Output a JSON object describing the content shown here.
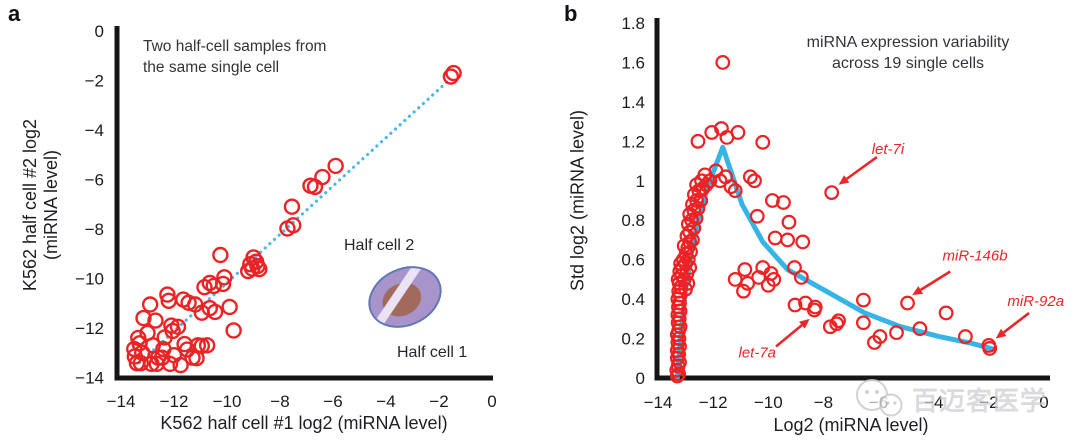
{
  "figure": {
    "panels": {
      "a": {
        "letter": "a",
        "annotation_line1": "Two half-cell samples from",
        "annotation_line2": "the same single cell",
        "x_label": "K562 half cell #1 log2 (miRNA level)",
        "y_label_line1": "K562 half cell #2 log2",
        "y_label_line2": "(miRNA level)",
        "inset_label_top": "Half cell 2",
        "inset_label_bottom": "Half cell 1"
      },
      "b": {
        "letter": "b",
        "title_line1": "miRNA expression variability",
        "title_line2": "across 19 single cells",
        "x_label": "Log2 (miRNA level)",
        "y_label": "Std log2 (miRNA level)"
      }
    },
    "watermark_text": "百迈客医学"
  },
  "colors": {
    "marker_red": "#ed2224",
    "annotation_red": "#e8262b",
    "line_blue": "#35b4e5",
    "dotted_blue": "#4db9e8",
    "axis_black": "#151515",
    "cell_body": "#a893cb",
    "cell_border": "#6277b6",
    "cell_nucleus": "#a26a5c",
    "cell_stripe": "#eae3f3",
    "watermark_gray": "#cdcdd2"
  },
  "chart_data": [
    {
      "id": "a",
      "type": "scatter",
      "title": "Two half-cell samples from the same single cell",
      "xlabel": "K562 half cell #1 log2 (miRNA level)",
      "ylabel": "K562 half cell #2 log2 (miRNA level)",
      "xlim": [
        -14,
        0
      ],
      "ylim": [
        -14,
        0
      ],
      "xticks": [
        -14,
        -12,
        -10,
        -8,
        -6,
        -4,
        -2,
        0
      ],
      "yticks": [
        0,
        -2,
        -4,
        -6,
        -8,
        -10,
        -12,
        -14
      ],
      "grid": false,
      "identity_line": {
        "style": "dotted",
        "from": [
          -13.3,
          -13.4
        ],
        "to": [
          -1.7,
          -2.06
        ]
      },
      "points": [
        [
          -1.45,
          -1.7
        ],
        [
          -1.55,
          -1.84
        ],
        [
          -5.9,
          -5.45
        ],
        [
          -6.4,
          -5.9
        ],
        [
          -6.85,
          -6.25
        ],
        [
          -6.68,
          -6.3
        ],
        [
          -7.55,
          -7.1
        ],
        [
          -7.5,
          -7.85
        ],
        [
          -7.72,
          -7.98
        ],
        [
          -10.25,
          -9.05
        ],
        [
          -9.0,
          -9.15
        ],
        [
          -8.9,
          -9.32
        ],
        [
          -8.85,
          -9.5
        ],
        [
          -9.05,
          -9.6
        ],
        [
          -9.2,
          -9.7
        ],
        [
          -8.78,
          -9.62
        ],
        [
          -9.12,
          -9.42
        ],
        [
          -10.1,
          -9.95
        ],
        [
          -10.85,
          -10.35
        ],
        [
          -10.65,
          -10.18
        ],
        [
          -10.5,
          -10.3
        ],
        [
          -10.15,
          -10.22
        ],
        [
          -11.65,
          -10.85
        ],
        [
          -11.45,
          -10.98
        ],
        [
          -11.2,
          -11.05
        ],
        [
          -10.65,
          -11.2
        ],
        [
          -10.45,
          -11.35
        ],
        [
          -10.95,
          -11.38
        ],
        [
          -9.9,
          -11.15
        ],
        [
          -9.75,
          -12.1
        ],
        [
          -11.85,
          -11.95
        ],
        [
          -12.25,
          -10.65
        ],
        [
          -12.2,
          -10.9
        ],
        [
          -12.9,
          -11.05
        ],
        [
          -13.15,
          -11.6
        ],
        [
          -12.7,
          -11.7
        ],
        [
          -12.1,
          -11.9
        ],
        [
          -12.05,
          -12.12
        ],
        [
          -13.35,
          -12.4
        ],
        [
          -13.3,
          -12.62
        ],
        [
          -12.8,
          -12.7
        ],
        [
          -13.0,
          -12.2
        ],
        [
          -12.6,
          -13.2
        ],
        [
          -12.45,
          -13.2
        ],
        [
          -12.0,
          -13.1
        ],
        [
          -11.6,
          -12.65
        ],
        [
          -11.5,
          -12.87
        ],
        [
          -11.1,
          -12.7
        ],
        [
          -10.95,
          -12.72
        ],
        [
          -10.75,
          -12.7
        ],
        [
          -11.3,
          -13.2
        ],
        [
          -11.15,
          -13.22
        ],
        [
          -13.4,
          -13.42
        ],
        [
          -13.25,
          -13.42
        ],
        [
          -12.85,
          -13.45
        ],
        [
          -12.65,
          -13.45
        ],
        [
          -13.5,
          -12.85
        ],
        [
          -13.48,
          -13.15
        ],
        [
          -12.35,
          -12.38
        ],
        [
          -12.4,
          -12.85
        ],
        [
          -11.75,
          -13.5
        ],
        [
          -12.15,
          -13.45
        ],
        [
          -13.2,
          -13.0
        ]
      ]
    },
    {
      "id": "b",
      "type": "scatter",
      "title": "miRNA expression variability across 19 single cells",
      "xlabel": "Log2 (miRNA level)",
      "ylabel": "Std log2 (miRNA level)",
      "xlim": [
        -14,
        0
      ],
      "ylim": [
        0,
        1.8
      ],
      "xticks": [
        -14,
        -12,
        -10,
        -8,
        -6,
        -4,
        -2,
        0
      ],
      "yticks": [
        0,
        0.2,
        0.4,
        0.6,
        0.8,
        1,
        1.2,
        1.4,
        1.6,
        1.8
      ],
      "grid": false,
      "trend_line": {
        "style": "solid",
        "points": [
          [
            -13.3,
            0
          ],
          [
            -13.15,
            0.25
          ],
          [
            -13.0,
            0.45
          ],
          [
            -12.8,
            0.63
          ],
          [
            -12.55,
            0.8
          ],
          [
            -12.2,
            0.97
          ],
          [
            -11.65,
            1.17
          ],
          [
            -10.95,
            0.88
          ],
          [
            -10.2,
            0.69
          ],
          [
            -9.3,
            0.55
          ],
          [
            -7.9,
            0.44
          ],
          [
            -6.5,
            0.33
          ],
          [
            -5.2,
            0.26
          ],
          [
            -3.8,
            0.21
          ],
          [
            -2.6,
            0.175
          ],
          [
            -1.8,
            0.145
          ]
        ]
      },
      "points": [
        [
          -13.3,
          0.01
        ],
        [
          -13.25,
          0.02
        ],
        [
          -13.32,
          0.04
        ],
        [
          -13.27,
          0.06
        ],
        [
          -13.22,
          0.08
        ],
        [
          -13.3,
          0.1
        ],
        [
          -13.25,
          0.12
        ],
        [
          -13.3,
          0.14
        ],
        [
          -13.22,
          0.16
        ],
        [
          -13.28,
          0.18
        ],
        [
          -13.24,
          0.2
        ],
        [
          -13.3,
          0.22
        ],
        [
          -13.25,
          0.24
        ],
        [
          -13.2,
          0.26
        ],
        [
          -13.27,
          0.28
        ],
        [
          -13.23,
          0.3
        ],
        [
          -13.28,
          0.32
        ],
        [
          -13.2,
          0.34
        ],
        [
          -13.26,
          0.36
        ],
        [
          -13.22,
          0.38
        ],
        [
          -13.28,
          0.4
        ],
        [
          -13.2,
          0.42
        ],
        [
          -13.25,
          0.44
        ],
        [
          -13.18,
          0.46
        ],
        [
          -13.23,
          0.48
        ],
        [
          -13.27,
          0.5
        ],
        [
          -13.15,
          0.52
        ],
        [
          -13.21,
          0.54
        ],
        [
          -13.12,
          0.56
        ],
        [
          -13.18,
          0.58
        ],
        [
          -13.08,
          0.6
        ],
        [
          -13.0,
          0.45
        ],
        [
          -12.92,
          0.48
        ],
        [
          -13.05,
          0.5
        ],
        [
          -12.95,
          0.53
        ],
        [
          -12.85,
          0.56
        ],
        [
          -13.0,
          0.58
        ],
        [
          -12.9,
          0.6
        ],
        [
          -12.98,
          0.63
        ],
        [
          -12.82,
          0.64
        ],
        [
          -12.92,
          0.66
        ],
        [
          -13.05,
          0.67
        ],
        [
          -12.85,
          0.69
        ],
        [
          -12.75,
          0.7
        ],
        [
          -12.95,
          0.72
        ],
        [
          -12.85,
          0.74
        ],
        [
          -12.7,
          0.76
        ],
        [
          -12.9,
          0.78
        ],
        [
          -12.78,
          0.8
        ],
        [
          -12.62,
          0.81
        ],
        [
          -12.85,
          0.83
        ],
        [
          -12.7,
          0.85
        ],
        [
          -12.55,
          0.86
        ],
        [
          -12.75,
          0.88
        ],
        [
          -12.6,
          0.9
        ],
        [
          -12.45,
          0.9
        ],
        [
          -12.68,
          0.93
        ],
        [
          -12.52,
          0.95
        ],
        [
          -12.38,
          0.96
        ],
        [
          -12.6,
          0.98
        ],
        [
          -12.42,
          1.0
        ],
        [
          -12.25,
          0.98
        ],
        [
          -12.12,
          1.0
        ],
        [
          -12.3,
          1.03
        ],
        [
          -12.55,
          1.2
        ],
        [
          -12.05,
          1.245
        ],
        [
          -11.7,
          1.265
        ],
        [
          -11.5,
          1.22
        ],
        [
          -11.1,
          1.245
        ],
        [
          -10.2,
          1.195
        ],
        [
          -11.65,
          1.6
        ],
        [
          -11.9,
          1.05
        ],
        [
          -11.75,
          1.0
        ],
        [
          -11.55,
          1.02
        ],
        [
          -11.35,
          0.97
        ],
        [
          -11.2,
          0.95
        ],
        [
          -10.65,
          1.02
        ],
        [
          -10.5,
          1.0
        ],
        [
          -9.85,
          0.9
        ],
        [
          -9.45,
          0.89
        ],
        [
          -9.25,
          0.79
        ],
        [
          -10.4,
          0.82
        ],
        [
          -9.75,
          0.71
        ],
        [
          -9.3,
          0.7
        ],
        [
          -8.75,
          0.69
        ],
        [
          -7.7,
          0.94
        ],
        [
          -11.2,
          0.5
        ],
        [
          -10.85,
          0.55
        ],
        [
          -10.75,
          0.48
        ],
        [
          -10.9,
          0.44
        ],
        [
          -10.2,
          0.56
        ],
        [
          -9.9,
          0.53
        ],
        [
          -10.0,
          0.47
        ],
        [
          -9.8,
          0.5
        ],
        [
          -9.05,
          0.56
        ],
        [
          -8.8,
          0.51
        ],
        [
          -10.35,
          0.51
        ],
        [
          -9.03,
          0.37
        ],
        [
          -8.65,
          0.38
        ],
        [
          -8.3,
          0.36
        ],
        [
          -8.33,
          0.345
        ],
        [
          -7.75,
          0.26
        ],
        [
          -7.45,
          0.29
        ],
        [
          -7.52,
          0.275
        ],
        [
          -6.55,
          0.395
        ],
        [
          -6.55,
          0.28
        ],
        [
          -5.95,
          0.21
        ],
        [
          -6.15,
          0.18
        ],
        [
          -5.35,
          0.23
        ],
        [
          -4.95,
          0.38
        ],
        [
          -3.55,
          0.33
        ],
        [
          -2.85,
          0.21
        ],
        [
          -4.5,
          0.25
        ],
        [
          -2.0,
          0.165
        ],
        [
          -1.97,
          0.15
        ]
      ],
      "annotations": [
        {
          "text": "let-7i",
          "label_at": [
            -5.66,
            1.16
          ],
          "arrow_from": [
            -6.06,
            1.12
          ],
          "arrow_to": [
            -7.45,
            0.98
          ]
        },
        {
          "text": "miR-146b",
          "label_at": [
            -2.5,
            0.62
          ],
          "arrow_from": [
            -3.4,
            0.54
          ],
          "arrow_to": [
            -4.78,
            0.42
          ]
        },
        {
          "text": "miR-92a",
          "label_at": [
            -0.3,
            0.39
          ],
          "arrow_from": [
            -0.54,
            0.33
          ],
          "arrow_to": [
            -1.75,
            0.2
          ]
        },
        {
          "text": "let-7a",
          "label_at": [
            -10.4,
            0.13
          ],
          "arrow_from": [
            -9.72,
            0.16
          ],
          "arrow_to": [
            -8.5,
            0.3
          ]
        }
      ]
    }
  ]
}
